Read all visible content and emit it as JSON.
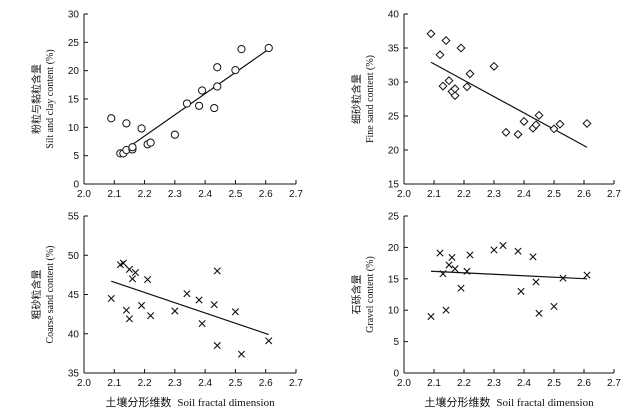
{
  "chart_data": [
    {
      "type": "scatter",
      "marker": "circle",
      "ylabel_zh": "粉粒与黏粒含量",
      "ylabel_en": "Silt and clay content (%)",
      "xlabel_zh": "",
      "xlabel_en": "",
      "xlim": [
        2.0,
        2.7
      ],
      "ylim": [
        0,
        30
      ],
      "xticks": [
        "2.0",
        "2.1",
        "2.2",
        "2.3",
        "2.4",
        "2.5",
        "2.6",
        "2.7"
      ],
      "yticks": [
        "0",
        "5",
        "10",
        "15",
        "20",
        "25",
        "30"
      ],
      "trend": [
        [
          2.11,
          5.1
        ],
        [
          2.61,
          23.8
        ]
      ],
      "points": [
        [
          2.09,
          11.6
        ],
        [
          2.12,
          5.4
        ],
        [
          2.13,
          5.4
        ],
        [
          2.14,
          10.7
        ],
        [
          2.14,
          6.0
        ],
        [
          2.16,
          6.1
        ],
        [
          2.16,
          6.5
        ],
        [
          2.19,
          9.8
        ],
        [
          2.21,
          7.0
        ],
        [
          2.22,
          7.3
        ],
        [
          2.3,
          8.7
        ],
        [
          2.34,
          14.2
        ],
        [
          2.38,
          13.8
        ],
        [
          2.39,
          16.5
        ],
        [
          2.43,
          13.4
        ],
        [
          2.44,
          17.2
        ],
        [
          2.44,
          20.6
        ],
        [
          2.5,
          20.1
        ],
        [
          2.52,
          23.8
        ],
        [
          2.61,
          24.0
        ]
      ]
    },
    {
      "type": "scatter",
      "marker": "diamond",
      "ylabel_zh": "细砂粒含量",
      "ylabel_en": "Fine sand content (%)",
      "xlabel_zh": "",
      "xlabel_en": "",
      "xlim": [
        2.0,
        2.7
      ],
      "ylim": [
        15,
        40
      ],
      "xticks": [
        "2.0",
        "2.1",
        "2.2",
        "2.3",
        "2.4",
        "2.5",
        "2.6",
        "2.7"
      ],
      "yticks": [
        "15",
        "20",
        "25",
        "30",
        "35",
        "40"
      ],
      "trend": [
        [
          2.09,
          32.9
        ],
        [
          2.61,
          20.4
        ]
      ],
      "points": [
        [
          2.09,
          37.1
        ],
        [
          2.12,
          34.0
        ],
        [
          2.13,
          29.4
        ],
        [
          2.14,
          36.1
        ],
        [
          2.15,
          30.2
        ],
        [
          2.16,
          28.6
        ],
        [
          2.17,
          28.0
        ],
        [
          2.17,
          29.0
        ],
        [
          2.19,
          35.0
        ],
        [
          2.21,
          29.3
        ],
        [
          2.22,
          31.2
        ],
        [
          2.3,
          32.3
        ],
        [
          2.34,
          22.6
        ],
        [
          2.38,
          22.3
        ],
        [
          2.4,
          24.2
        ],
        [
          2.43,
          23.2
        ],
        [
          2.44,
          23.7
        ],
        [
          2.45,
          25.1
        ],
        [
          2.5,
          23.1
        ],
        [
          2.52,
          23.8
        ],
        [
          2.61,
          23.9
        ]
      ]
    },
    {
      "type": "scatter",
      "marker": "x",
      "ylabel_zh": "粗砂粒含量",
      "ylabel_en": "Coarse sand content (%)",
      "xlabel_zh": "土壤分形维数",
      "xlabel_en": "Soil fractal dimension",
      "xlim": [
        2.0,
        2.7
      ],
      "ylim": [
        35,
        55
      ],
      "xticks": [
        "2.0",
        "2.1",
        "2.2",
        "2.3",
        "2.4",
        "2.5",
        "2.6",
        "2.7"
      ],
      "yticks": [
        "35",
        "40",
        "45",
        "50",
        "55"
      ],
      "trend": [
        [
          2.09,
          46.7
        ],
        [
          2.61,
          39.9
        ]
      ],
      "points": [
        [
          2.09,
          44.5
        ],
        [
          2.12,
          48.8
        ],
        [
          2.13,
          49.0
        ],
        [
          2.14,
          43.0
        ],
        [
          2.15,
          41.9
        ],
        [
          2.15,
          48.2
        ],
        [
          2.16,
          47.0
        ],
        [
          2.17,
          47.8
        ],
        [
          2.19,
          43.6
        ],
        [
          2.21,
          46.9
        ],
        [
          2.22,
          42.3
        ],
        [
          2.3,
          42.9
        ],
        [
          2.34,
          45.1
        ],
        [
          2.38,
          44.3
        ],
        [
          2.39,
          41.3
        ],
        [
          2.43,
          43.7
        ],
        [
          2.44,
          38.5
        ],
        [
          2.44,
          48.0
        ],
        [
          2.5,
          42.8
        ],
        [
          2.52,
          37.4
        ],
        [
          2.61,
          39.1
        ]
      ]
    },
    {
      "type": "scatter",
      "marker": "x",
      "ylabel_zh": "石砾含量",
      "ylabel_en": "Gravel content (%)",
      "xlabel_zh": "土壤分形维数",
      "xlabel_en": "Soil fractal dimension",
      "xlim": [
        2.0,
        2.7
      ],
      "ylim": [
        0,
        25
      ],
      "xticks": [
        "2.0",
        "2.1",
        "2.2",
        "2.3",
        "2.4",
        "2.5",
        "2.6",
        "2.7"
      ],
      "yticks": [
        "0",
        "5",
        "10",
        "15",
        "20",
        "25"
      ],
      "trend": [
        [
          2.09,
          16.2
        ],
        [
          2.61,
          15.0
        ]
      ],
      "points": [
        [
          2.09,
          9.0
        ],
        [
          2.12,
          19.1
        ],
        [
          2.13,
          15.8
        ],
        [
          2.14,
          10.0
        ],
        [
          2.15,
          17.2
        ],
        [
          2.16,
          18.4
        ],
        [
          2.17,
          16.6
        ],
        [
          2.19,
          13.5
        ],
        [
          2.21,
          16.2
        ],
        [
          2.22,
          18.8
        ],
        [
          2.3,
          19.6
        ],
        [
          2.33,
          20.3
        ],
        [
          2.38,
          19.4
        ],
        [
          2.39,
          13.0
        ],
        [
          2.43,
          18.5
        ],
        [
          2.44,
          14.5
        ],
        [
          2.45,
          9.5
        ],
        [
          2.5,
          10.6
        ],
        [
          2.53,
          15.1
        ],
        [
          2.61,
          15.6
        ]
      ]
    }
  ]
}
